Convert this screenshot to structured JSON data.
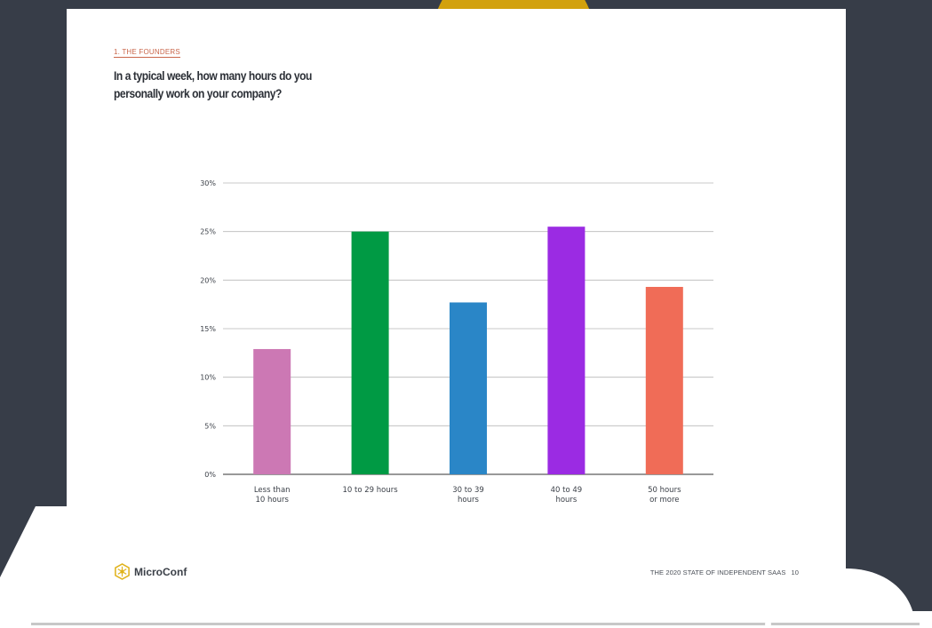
{
  "page": {
    "section_label": "1. THE FOUNDERS",
    "question": "In a typical week, how many hours do you personally work on your company?",
    "footer_title": "THE 2020 STATE OF INDEPENDENT SAAS",
    "page_number": "10",
    "logo_text": "MicroConf"
  },
  "colors": {
    "background": "#373d48",
    "accent": "#c9664a",
    "logo": "#e0b21a"
  },
  "icons": [
    "microconf-logo-icon"
  ],
  "chart_data": {
    "type": "bar",
    "title": "",
    "xlabel": "",
    "ylabel": "",
    "categories": [
      [
        "Less than",
        "10 hours"
      ],
      [
        "10 to 29 hours"
      ],
      [
        "30 to 39",
        "hours"
      ],
      [
        "40 to 49",
        "hours"
      ],
      [
        "50 hours",
        "or more"
      ]
    ],
    "values": [
      12.9,
      25.0,
      17.7,
      25.5,
      19.3
    ],
    "colors": [
      "#cc78b4",
      "#009a44",
      "#2a86c7",
      "#9b2be3",
      "#f06c57"
    ],
    "ylim": [
      0,
      30
    ],
    "yticks": [
      0,
      5,
      10,
      15,
      20,
      25,
      30
    ],
    "ytick_labels": [
      "0%",
      "5%",
      "10%",
      "15%",
      "20%",
      "25%",
      "30%"
    ],
    "grid": true,
    "legend": "none"
  }
}
